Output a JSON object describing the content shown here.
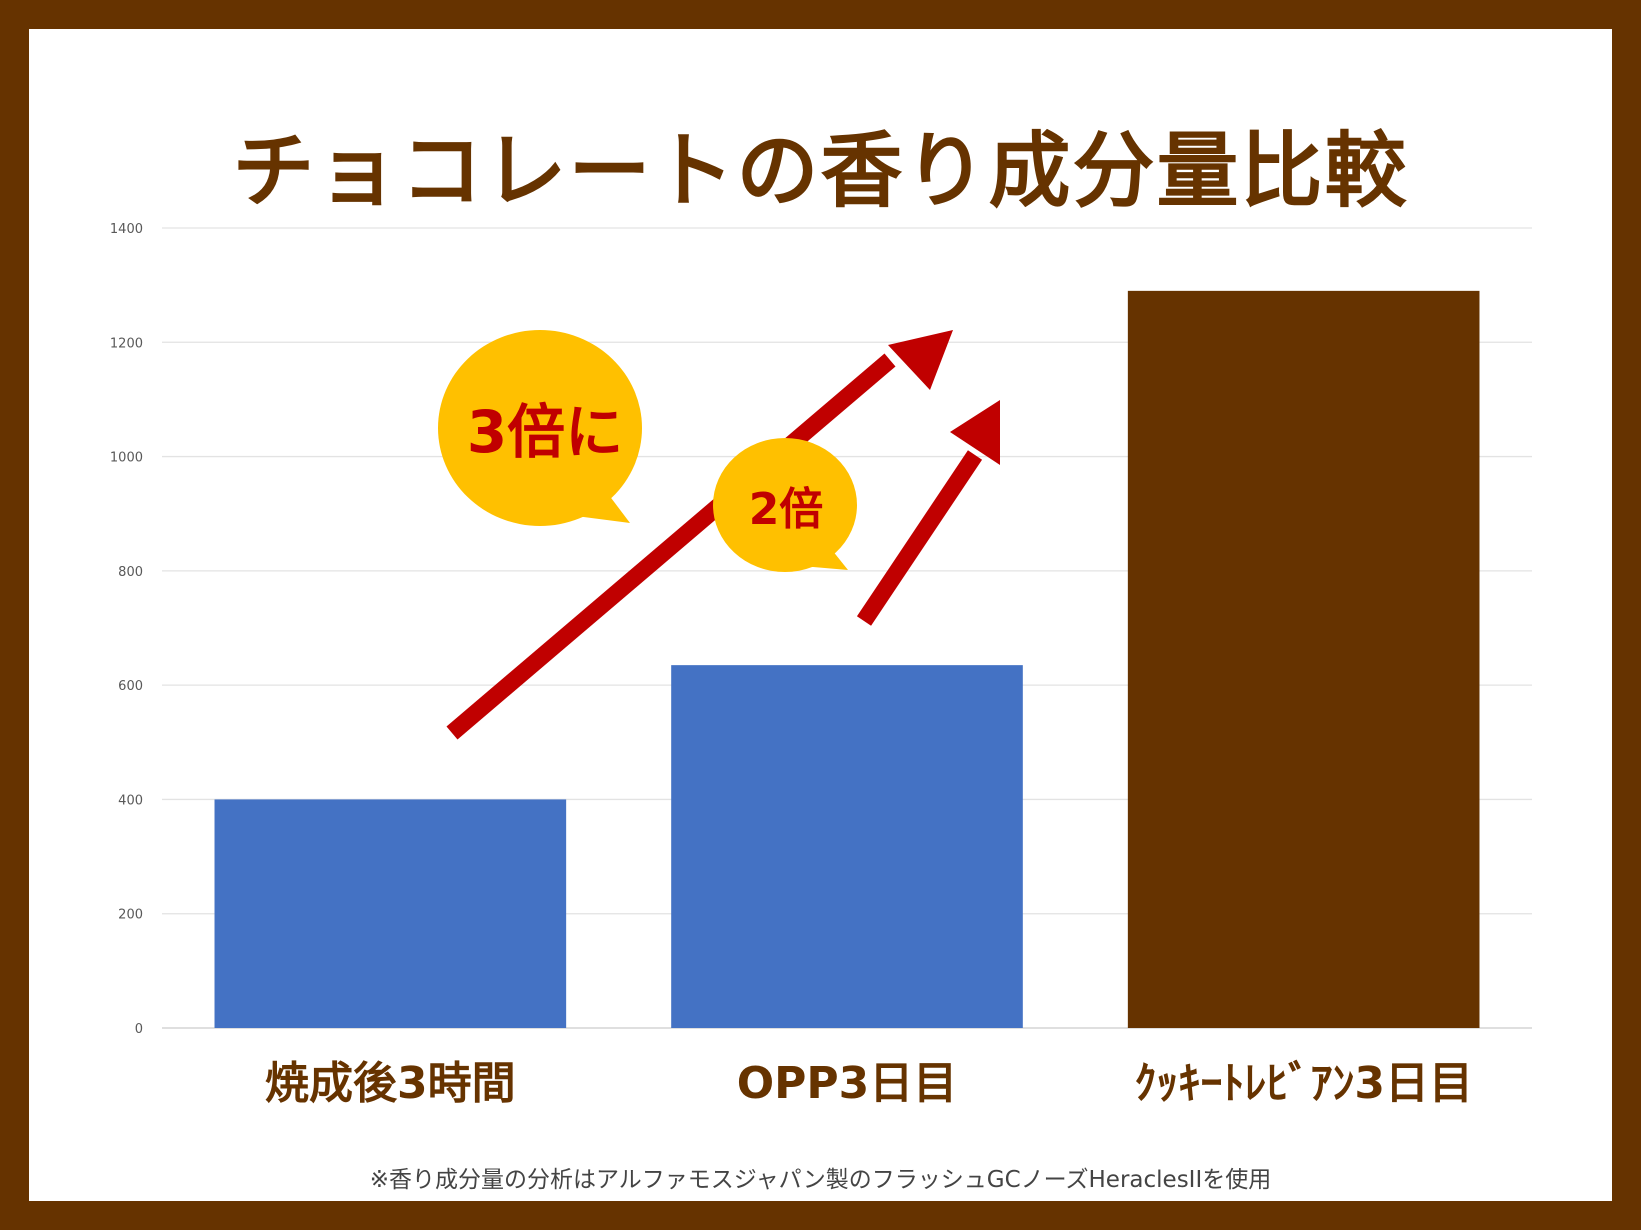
{
  "title": "チョコレートの香り成分量比較",
  "footnote": "※香り成分量の分析はアルファモスジャパン製のフラッシュGCノーズHeraclesIIを使用",
  "colors": {
    "frame": "#663300",
    "bar_blue": "#4472C4",
    "bar_brown": "#663300",
    "bubble": "#FFC000",
    "arrow": "#C00000",
    "category_text": "#663300"
  },
  "annotations": {
    "bubble_big": "3倍に",
    "bubble_small": "2倍"
  },
  "chart_data": {
    "type": "bar",
    "categories": [
      "焼成後3時間",
      "OPP3日目",
      "ｸｯｷｰﾄﾚﾋﾞｱﾝ3日目"
    ],
    "values": [
      400,
      635,
      1290
    ],
    "bar_colors": [
      "#4472C4",
      "#4472C4",
      "#663300"
    ],
    "ylim": [
      0,
      1400
    ],
    "yticks": [
      0,
      200,
      400,
      600,
      800,
      1000,
      1200,
      1400
    ],
    "grid": true,
    "legend": "none"
  }
}
